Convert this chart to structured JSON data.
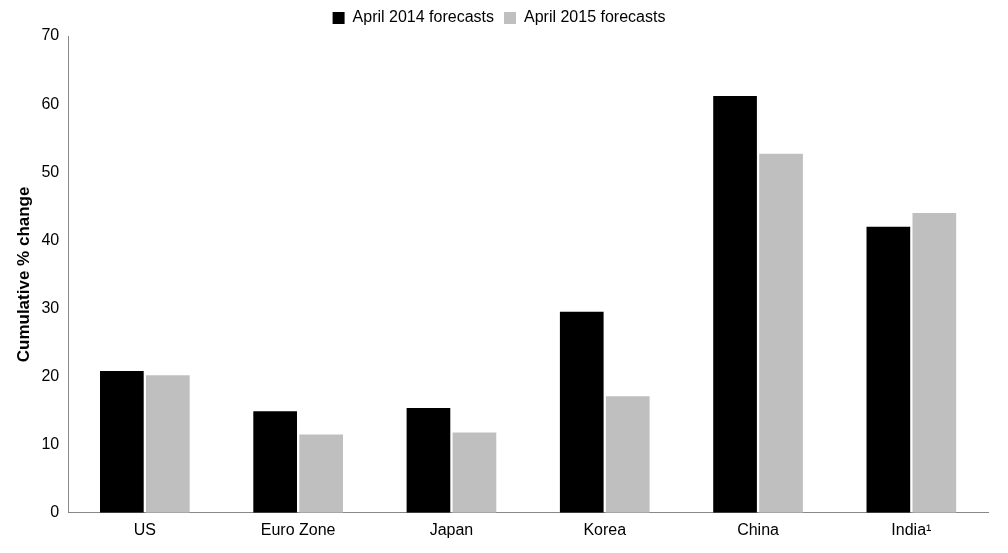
{
  "chart_data": {
    "type": "bar",
    "ylabel": "Cumulative % change",
    "categories": [
      "US",
      "Euro Zone",
      "Japan",
      "Korea",
      "China",
      "India¹"
    ],
    "series": [
      {
        "name": "April 2014 forecasts",
        "color": "#000000",
        "values": [
          20.8,
          14.9,
          15.4,
          29.5,
          61.2,
          42.0
        ]
      },
      {
        "name": "April 2015 forecasts",
        "color": "#bfbfbf",
        "values": [
          20.2,
          11.5,
          11.8,
          17.1,
          52.7,
          44.0
        ]
      }
    ],
    "ylim": [
      0,
      70
    ],
    "yticks": [
      0,
      10,
      20,
      30,
      40,
      50,
      60,
      70
    ],
    "grid": false,
    "legend": "top"
  }
}
